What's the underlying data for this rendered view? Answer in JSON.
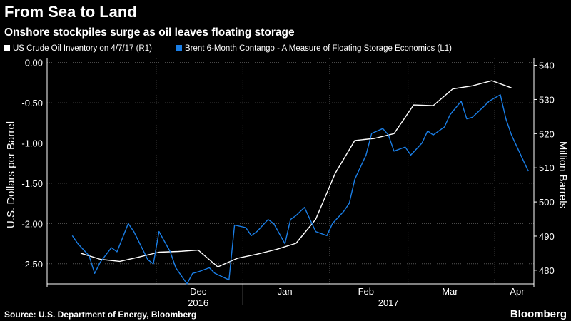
{
  "title": "From Sea to Land",
  "subtitle": "Onshore stockpiles surge as oil leaves floating storage",
  "source": "Source: U.S. Department of Energy, Bloomberg",
  "brand": "Bloomberg",
  "colors": {
    "background": "#000000",
    "blue_series": "#1a7ee6",
    "white_series": "#ffffff",
    "grid": "#555555"
  },
  "chart_data": {
    "type": "line",
    "x_tick_labels": [
      "Dec",
      "Jan",
      "Feb",
      "Mar",
      "Apr"
    ],
    "x_year_labels": [
      "2016",
      "2017"
    ],
    "left_axis": {
      "label": "U.S. Dollars per Barrel",
      "range": [
        -2.75,
        0.05
      ],
      "ticks": [
        "0.00",
        "-0.50",
        "-1.00",
        "-1.50",
        "-2.00",
        "-2.50"
      ]
    },
    "right_axis": {
      "label": "Million Barrels",
      "range": [
        476,
        542
      ],
      "ticks": [
        "540",
        "530",
        "520",
        "510",
        "500",
        "490",
        "480"
      ]
    },
    "grid": true,
    "legend_position": "top",
    "series": [
      {
        "name": "US Crude Oil Inventory on 4/7/17 (R1)",
        "axis": "right",
        "color": "#ffffff",
        "x": [
          "2016-11-04",
          "2016-11-11",
          "2016-11-18",
          "2016-11-25",
          "2016-12-02",
          "2016-12-09",
          "2016-12-16",
          "2016-12-23",
          "2016-12-30",
          "2017-01-06",
          "2017-01-13",
          "2017-01-20",
          "2017-01-27",
          "2017-02-03",
          "2017-02-10",
          "2017-02-17",
          "2017-02-24",
          "2017-03-03",
          "2017-03-10",
          "2017-03-17",
          "2017-03-24",
          "2017-03-31",
          "2017-04-07"
        ],
        "y": [
          485.0,
          483.2,
          482.6,
          483.9,
          485.3,
          485.5,
          485.9,
          481.0,
          483.5,
          484.7,
          486.1,
          487.9,
          494.9,
          508.4,
          518.0,
          518.6,
          520.0,
          528.4,
          528.2,
          533.1,
          534.0,
          535.5,
          533.4
        ]
      },
      {
        "name": "Brent 6-Month Contango - A Measure of Floating Storage Economics (L1)",
        "axis": "left",
        "color": "#1a7ee6",
        "x": [
          "2016-11-01",
          "2016-11-03",
          "2016-11-07",
          "2016-11-09",
          "2016-11-11",
          "2016-11-15",
          "2016-11-17",
          "2016-11-21",
          "2016-11-23",
          "2016-11-28",
          "2016-11-30",
          "2016-12-02",
          "2016-12-06",
          "2016-12-08",
          "2016-12-12",
          "2016-12-14",
          "2016-12-16",
          "2016-12-20",
          "2016-12-22",
          "2016-12-27",
          "2016-12-29",
          "2017-01-02",
          "2017-01-04",
          "2017-01-06",
          "2017-01-10",
          "2017-01-12",
          "2017-01-16",
          "2017-01-18",
          "2017-01-20",
          "2017-01-23",
          "2017-01-25",
          "2017-01-27",
          "2017-01-31",
          "2017-02-02",
          "2017-02-06",
          "2017-02-08",
          "2017-02-10",
          "2017-02-14",
          "2017-02-16",
          "2017-02-20",
          "2017-02-22",
          "2017-02-24",
          "2017-02-28",
          "2017-03-02",
          "2017-03-06",
          "2017-03-08",
          "2017-03-10",
          "2017-03-14",
          "2017-03-16",
          "2017-03-20",
          "2017-03-22",
          "2017-03-24",
          "2017-03-28",
          "2017-03-30",
          "2017-04-03",
          "2017-04-05",
          "2017-04-07",
          "2017-04-11",
          "2017-04-13"
        ],
        "y": [
          -2.15,
          -2.25,
          -2.4,
          -2.62,
          -2.48,
          -2.3,
          -2.35,
          -2.0,
          -2.1,
          -2.45,
          -2.5,
          -2.1,
          -2.35,
          -2.55,
          -2.75,
          -2.62,
          -2.6,
          -2.55,
          -2.62,
          -2.7,
          -2.02,
          -2.05,
          -2.15,
          -2.1,
          -1.95,
          -2.0,
          -2.25,
          -1.95,
          -1.9,
          -1.8,
          -1.95,
          -2.1,
          -2.15,
          -2.0,
          -1.85,
          -1.75,
          -1.45,
          -1.15,
          -0.88,
          -0.82,
          -0.9,
          -1.1,
          -1.05,
          -1.15,
          -1.0,
          -0.85,
          -0.9,
          -0.8,
          -0.65,
          -0.48,
          -0.7,
          -0.68,
          -0.55,
          -0.48,
          -0.4,
          -0.7,
          -0.9,
          -1.2,
          -1.35
        ]
      }
    ]
  }
}
